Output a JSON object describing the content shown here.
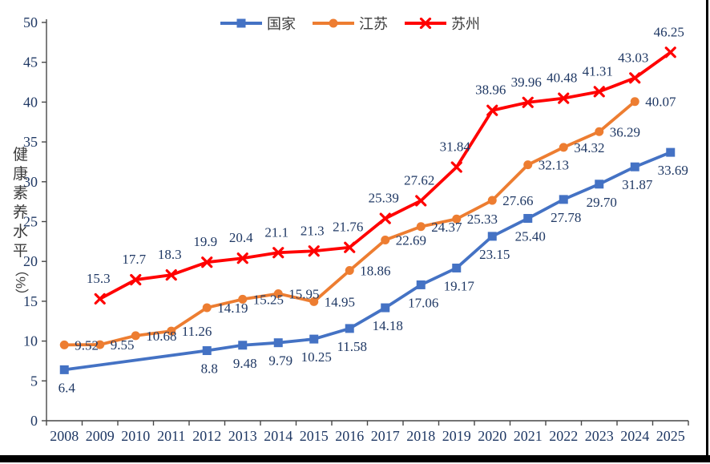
{
  "chart_data": {
    "type": "line",
    "title": "",
    "ylabel": "健康素养水平（%）",
    "ylabel_text": "健康素养水平",
    "ylabel_unit": "（%）",
    "xlabel": "",
    "x": [
      2008,
      2009,
      2010,
      2011,
      2012,
      2013,
      2014,
      2015,
      2016,
      2017,
      2018,
      2019,
      2020,
      2021,
      2022,
      2023,
      2024,
      2025
    ],
    "ylim": [
      0,
      50
    ],
    "yticks": [
      0,
      5,
      10,
      15,
      20,
      25,
      30,
      35,
      40,
      45,
      50
    ],
    "grid": false,
    "legend_position": "top-center",
    "axis_color": "#474747",
    "label_color": "#1F3864",
    "series": [
      {
        "name": "国家",
        "color": "#4472C4",
        "marker": "square",
        "label_position": "below",
        "values": [
          6.4,
          null,
          null,
          null,
          8.8,
          9.48,
          9.79,
          10.25,
          11.58,
          14.18,
          17.06,
          19.17,
          23.15,
          25.4,
          27.78,
          29.7,
          31.87,
          33.69
        ],
        "labels": [
          "6.4",
          null,
          null,
          null,
          "8.8",
          "9.48",
          "9.79",
          "10.25",
          "11.58",
          "14.18",
          "17.06",
          "19.17",
          "23.15",
          "25.40",
          "27.78",
          "29.70",
          "31.87",
          "33.69"
        ]
      },
      {
        "name": "江苏",
        "color": "#ED7D31",
        "marker": "circle",
        "label_position": "right",
        "values": [
          9.52,
          9.55,
          10.68,
          11.26,
          14.19,
          15.25,
          15.95,
          14.95,
          18.86,
          22.69,
          24.37,
          25.33,
          27.66,
          32.13,
          34.32,
          36.29,
          40.07,
          null
        ],
        "labels": [
          "9.52",
          "9.55",
          "10.68",
          "11.26",
          "14.19",
          "15.25",
          "15.95",
          "14.95",
          "18.86",
          "22.69",
          "24.37",
          "25.33",
          "27.66",
          "32.13",
          "34.32",
          "36.29",
          "40.07",
          null
        ]
      },
      {
        "name": "苏州",
        "color": "#FF0000",
        "marker": "x",
        "label_position": "above",
        "values": [
          null,
          15.3,
          17.7,
          18.3,
          19.9,
          20.4,
          21.1,
          21.3,
          21.76,
          25.39,
          27.62,
          31.84,
          38.96,
          39.96,
          40.48,
          41.31,
          43.03,
          46.25
        ],
        "labels": [
          null,
          "15.3",
          "17.7",
          "18.3",
          "19.9",
          "20.4",
          "21.1",
          "21.3",
          "21.76",
          "25.39",
          "27.62",
          "31.84",
          "38.96",
          "39.96",
          "40.48",
          "41.31",
          "43.03",
          "46.25"
        ]
      }
    ]
  },
  "frame": {
    "right_border_color": "#000000",
    "bottom_border_color": "#000000",
    "background": "#ffffff"
  }
}
